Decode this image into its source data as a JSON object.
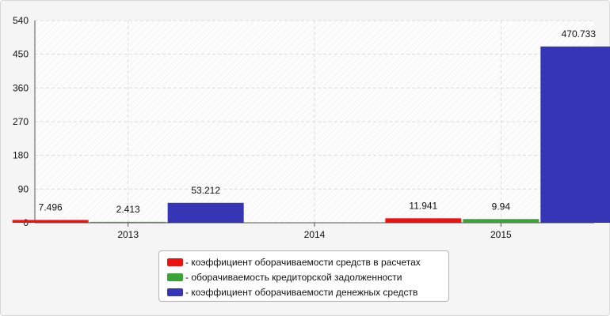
{
  "chart_data": {
    "type": "bar",
    "categories": [
      "2013",
      "2014",
      "2015"
    ],
    "ylim": [
      0,
      540
    ],
    "yticks": [
      "0",
      "90",
      "180",
      "270",
      "360",
      "450",
      "540"
    ],
    "grid": true,
    "legend_position": "bottom",
    "series": [
      {
        "name": "- коэффициент оборачиваемости средств в расчетах",
        "color": "#ee1111",
        "values": [
          7.496,
          null,
          11.941
        ],
        "labels": [
          "7.496",
          "",
          "11.941"
        ]
      },
      {
        "name": "- оборачиваемость кредиторской задолженности",
        "color": "#3aa335",
        "values": [
          2.413,
          null,
          9.94
        ],
        "labels": [
          "2.413",
          "",
          "9.94"
        ]
      },
      {
        "name": "- коэффициент оборачиваемости денежных средств",
        "color": "#3535b5",
        "values": [
          53.212,
          null,
          470.733
        ],
        "labels": [
          "53.212",
          "",
          "470.733"
        ]
      }
    ]
  }
}
